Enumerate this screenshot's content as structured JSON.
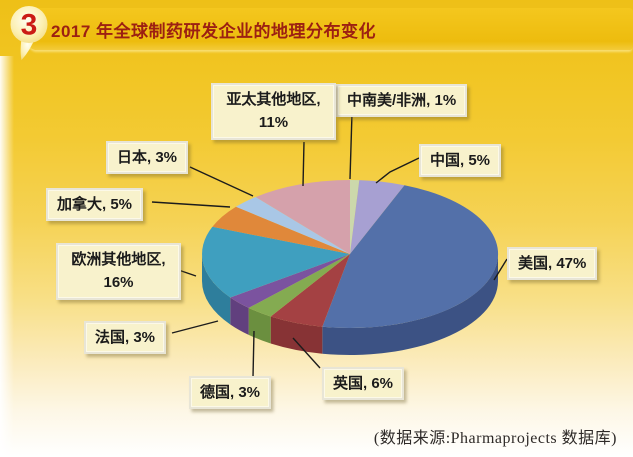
{
  "badge": {
    "number": "3"
  },
  "header": {
    "title": "2017 年全球制药研发企业的地理分布变化"
  },
  "footer": {
    "source_note": "(数据来源:Pharmaprojects 数据库)"
  },
  "colors": {
    "banner_gold": "#f0c21a",
    "title_red": "#9c2012",
    "callout_bg": "#f8f2cc",
    "leader_line": "#1c1c1c"
  },
  "chart_data": {
    "type": "pie",
    "style": "3d-exploded-labels",
    "title": "2017 年全球制药研发企业的地理分布变化",
    "value_suffix": "%",
    "start_angle": "12-oclock",
    "direction": "clockwise",
    "legend_position": "callout-labels",
    "slices": [
      {
        "id": "latam-africa",
        "label": "中南美/非洲",
        "value": 1,
        "color": "#ccd8ab",
        "side_color": "#b0bd8c"
      },
      {
        "id": "china",
        "label": "中国",
        "value": 5,
        "color": "#a7a0d2",
        "side_color": "#8a83b6"
      },
      {
        "id": "usa",
        "label": "美国",
        "value": 47,
        "color": "#5370a9",
        "side_color": "#3c5284"
      },
      {
        "id": "uk",
        "label": "英国",
        "value": 6,
        "color": "#a44143",
        "side_color": "#873335"
      },
      {
        "id": "germany",
        "label": "德国",
        "value": 3,
        "color": "#84ab51",
        "side_color": "#6b8f3f"
      },
      {
        "id": "france",
        "label": "法国",
        "value": 3,
        "color": "#7b539f",
        "side_color": "#61407e"
      },
      {
        "id": "other-europe",
        "label": "欧洲其他地区",
        "value": 16,
        "color": "#3f9fbf",
        "side_color": "#2e7e9c"
      },
      {
        "id": "canada",
        "label": "加拿大",
        "value": 5,
        "color": "#e0883a",
        "side_color": "#b96d2b"
      },
      {
        "id": "japan",
        "label": "日本",
        "value": 3,
        "color": "#a9c7e6",
        "side_color": "#87a7c8"
      },
      {
        "id": "other-apac",
        "label": "亚太其他地区",
        "value": 11,
        "color": "#d5a1ab",
        "side_color": "#b8868f"
      }
    ]
  }
}
